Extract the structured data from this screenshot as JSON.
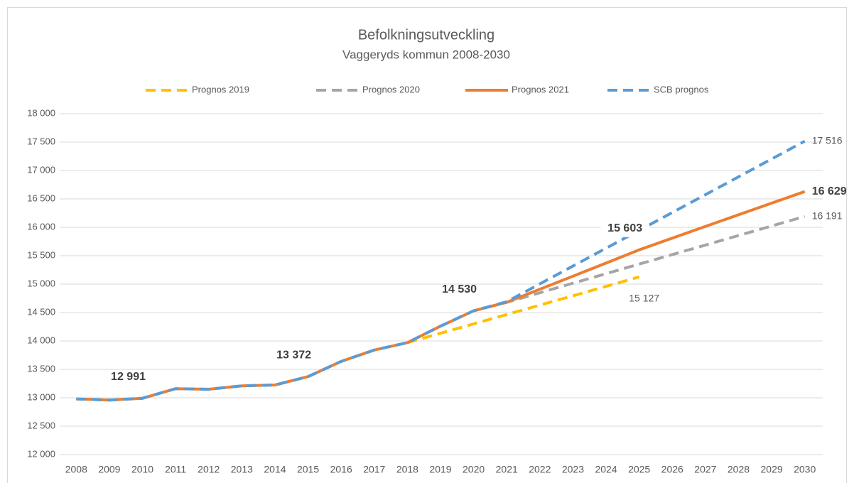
{
  "chart_data": {
    "type": "line",
    "title": "Befolkningsutveckling",
    "subtitle": "Vaggeryds kommun 2008-2030",
    "categories": [
      "2008",
      "2009",
      "2010",
      "2011",
      "2012",
      "2013",
      "2014",
      "2015",
      "2016",
      "2017",
      "2018",
      "2019",
      "2020",
      "2021",
      "2022",
      "2023",
      "2024",
      "2025",
      "2026",
      "2027",
      "2028",
      "2029",
      "2030"
    ],
    "ylim": [
      12000,
      18000
    ],
    "yticks": [
      {
        "value": 12000,
        "label": "12 000"
      },
      {
        "value": 12500,
        "label": "12 500"
      },
      {
        "value": 13000,
        "label": "13 000"
      },
      {
        "value": 13500,
        "label": "13 500"
      },
      {
        "value": 14000,
        "label": "14 000"
      },
      {
        "value": 14500,
        "label": "14 500"
      },
      {
        "value": 15000,
        "label": "15 000"
      },
      {
        "value": 15500,
        "label": "15 500"
      },
      {
        "value": 16000,
        "label": "16 000"
      },
      {
        "value": 16500,
        "label": "16 500"
      },
      {
        "value": 17000,
        "label": "17 000"
      },
      {
        "value": 17500,
        "label": "17 500"
      },
      {
        "value": 18000,
        "label": "18 000"
      }
    ],
    "grid": true,
    "legend": "top",
    "series": [
      {
        "name": "Prognos 2019",
        "color": "#ffc000",
        "dashed": true,
        "values": [
          null,
          null,
          null,
          null,
          null,
          null,
          null,
          null,
          null,
          null,
          13970,
          14135,
          14300,
          14465,
          14630,
          14795,
          14960,
          15127,
          null,
          null,
          null,
          null,
          null
        ],
        "value_labels": [
          null,
          null,
          null,
          null,
          null,
          null,
          null,
          null,
          null,
          null,
          null,
          null,
          null,
          null,
          null,
          null,
          null,
          "15 127",
          null,
          null,
          null,
          null,
          null
        ]
      },
      {
        "name": "Prognos 2020",
        "color": "#a5a5a5",
        "dashed": true,
        "values": [
          null,
          null,
          null,
          null,
          null,
          null,
          null,
          null,
          null,
          null,
          null,
          null,
          14530,
          14680,
          14848,
          15016,
          15184,
          15352,
          15520,
          15687,
          15855,
          16023,
          16191
        ],
        "value_labels": [
          null,
          null,
          null,
          null,
          null,
          null,
          null,
          null,
          null,
          null,
          null,
          null,
          null,
          null,
          null,
          null,
          null,
          null,
          null,
          null,
          null,
          null,
          "16 191"
        ]
      },
      {
        "name": "Prognos 2021",
        "color": "#ed7d31",
        "dashed": false,
        "values": [
          12980,
          12960,
          12991,
          13160,
          13150,
          13210,
          13225,
          13372,
          13640,
          13840,
          13970,
          14260,
          14530,
          14680,
          14910,
          15140,
          15370,
          15603,
          15810,
          16015,
          16220,
          16425,
          16629
        ],
        "value_labels": [
          null,
          null,
          "12 991",
          null,
          null,
          null,
          null,
          "13 372",
          null,
          null,
          null,
          null,
          "14 530",
          null,
          null,
          null,
          null,
          "15 603",
          null,
          null,
          null,
          null,
          "16 629"
        ]
      },
      {
        "name": "SCB prognos",
        "color": "#5b9bd5",
        "dashed": true,
        "values": [
          12980,
          12960,
          12991,
          13160,
          13150,
          13210,
          13225,
          13372,
          13640,
          13840,
          13970,
          14260,
          14530,
          14690,
          15004,
          15318,
          15632,
          15946,
          16260,
          16574,
          16888,
          17202,
          17516
        ],
        "value_labels": [
          null,
          null,
          null,
          null,
          null,
          null,
          null,
          null,
          null,
          null,
          null,
          null,
          null,
          null,
          null,
          null,
          null,
          null,
          null,
          null,
          null,
          null,
          "17 516"
        ]
      }
    ]
  }
}
